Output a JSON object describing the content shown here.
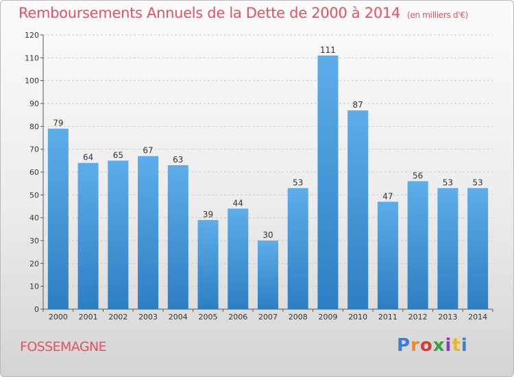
{
  "title": "Remboursements Annuels de la Dette de 2000 à 2014",
  "unit_note": "(en milliers d'€)",
  "commune": "FOSSEMAGNE",
  "logo": {
    "text": "Proxiti",
    "colors": [
      "#3a7fd0",
      "#f08a1c",
      "#d63b3b",
      "#3aa040",
      "#8a3fb0",
      "#e8b82a",
      "#3a7fd0"
    ]
  },
  "colors": {
    "bar_top": "#5dade9",
    "bar_bottom": "#2d7fc3",
    "grid": "#c9c9c9",
    "accent": "#e8505f"
  },
  "chart_data": {
    "type": "bar",
    "title": "Remboursements Annuels de la Dette de 2000 à 2014",
    "categories": [
      "2000",
      "2001",
      "2002",
      "2003",
      "2004",
      "2005",
      "2006",
      "2007",
      "2008",
      "2009",
      "2010",
      "2011",
      "2012",
      "2013",
      "2014"
    ],
    "values": [
      79,
      64,
      65,
      67,
      63,
      39,
      44,
      30,
      53,
      111,
      87,
      47,
      56,
      53,
      53
    ],
    "ylim": [
      0,
      120
    ],
    "yticks": [
      0,
      10,
      20,
      30,
      40,
      50,
      60,
      70,
      80,
      90,
      100,
      110,
      120
    ],
    "xlabel": "",
    "ylabel": "",
    "grid": true,
    "legend": "none"
  }
}
